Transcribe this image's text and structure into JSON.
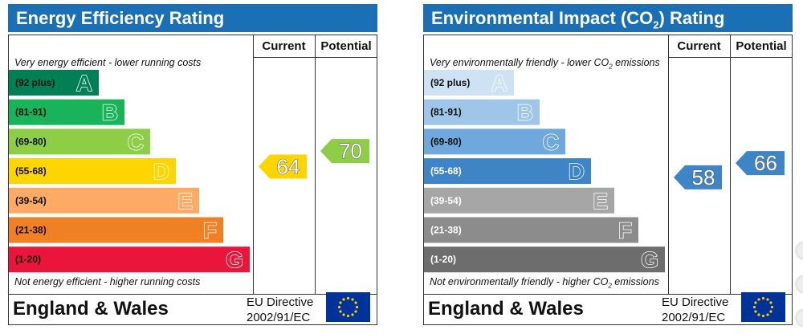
{
  "chart_data": [
    {
      "type": "bar",
      "title": "Energy Efficiency Rating",
      "columns": [
        "Current",
        "Potential"
      ],
      "top_note": "Very energy efficient - lower running costs",
      "bottom_note": "Not energy efficient - higher running costs",
      "bands": [
        {
          "letter": "A",
          "range": "(92 plus)",
          "color": "#008054"
        },
        {
          "letter": "B",
          "range": "(81-91)",
          "color": "#19b459"
        },
        {
          "letter": "C",
          "range": "(69-80)",
          "color": "#8dce46"
        },
        {
          "letter": "D",
          "range": "(55-68)",
          "color": "#ffd500"
        },
        {
          "letter": "E",
          "range": "(39-54)",
          "color": "#fcaa65"
        },
        {
          "letter": "F",
          "range": "(21-38)",
          "color": "#ef8023"
        },
        {
          "letter": "G",
          "range": "(1-20)",
          "color": "#e9153b"
        }
      ],
      "current": {
        "value": 64,
        "band": "D",
        "color": "#ffd500"
      },
      "potential": {
        "value": 70,
        "band": "C",
        "color": "#8dce46"
      },
      "footer_region": "England & Wales",
      "footer_directive": [
        "EU Directive",
        "2002/91/EC"
      ]
    },
    {
      "type": "bar",
      "title": "Environmental Impact (CO2) Rating",
      "columns": [
        "Current",
        "Potential"
      ],
      "top_note": "Very environmentally friendly - lower CO2 emissions",
      "bottom_note": "Not environmentally friendly - higher CO2 emissions",
      "bands": [
        {
          "letter": "A",
          "range": "(92 plus)",
          "color": "#cfe2f3"
        },
        {
          "letter": "B",
          "range": "(81-91)",
          "color": "#9fc5e8"
        },
        {
          "letter": "C",
          "range": "(69-80)",
          "color": "#6fa8dc"
        },
        {
          "letter": "D",
          "range": "(55-68)",
          "color": "#3d85c6"
        },
        {
          "letter": "E",
          "range": "(39-54)",
          "color": "#a6a6a6"
        },
        {
          "letter": "F",
          "range": "(21-38)",
          "color": "#8c8c8c"
        },
        {
          "letter": "G",
          "range": "(1-20)",
          "color": "#6d6d6d"
        }
      ],
      "current": {
        "value": 58,
        "band": "D",
        "color": "#3d85c6"
      },
      "potential": {
        "value": 66,
        "band": "D",
        "color": "#3d85c6"
      },
      "footer_region": "England & Wales",
      "footer_directive": [
        "EU Directive",
        "2002/91/EC"
      ]
    }
  ],
  "icons": {
    "eu_flag": "eu-flag-icon",
    "scroll_buttons": "scroll-arrow-icon"
  }
}
